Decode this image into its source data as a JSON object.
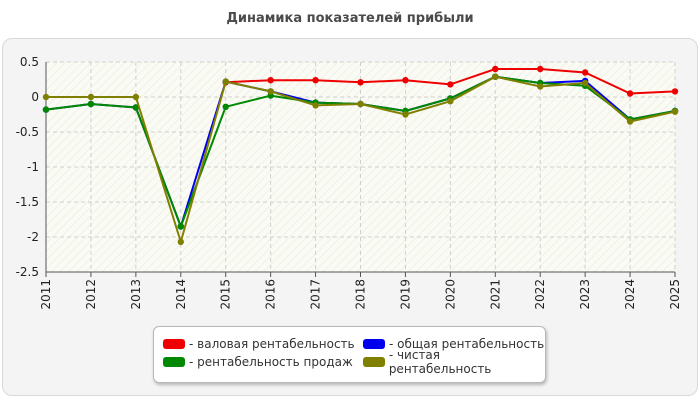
{
  "chart_data": {
    "type": "line",
    "title": "Динамика показателей прибыли",
    "x": [
      "2011",
      "2012",
      "2013",
      "2014",
      "2015",
      "2016",
      "2017",
      "2018",
      "2019",
      "2020",
      "2021",
      "2022",
      "2023",
      "2024",
      "2025"
    ],
    "yticks": [
      "0.5",
      "0",
      "-0.5",
      "-1",
      "-1.5",
      "-2",
      "-2.5"
    ],
    "ylim": [
      -2.5,
      0.5
    ],
    "grid": true,
    "legend_position": "bottom",
    "series": [
      {
        "name": "- валовая рентабельность",
        "color": "#ee0000",
        "values": [
          null,
          null,
          null,
          null,
          0.21,
          0.24,
          0.24,
          0.21,
          0.24,
          0.18,
          0.4,
          0.4,
          0.35,
          0.05,
          0.08
        ]
      },
      {
        "name": "- общая рентабельность",
        "color": "#0000ee",
        "values": [
          -0.18,
          -0.1,
          -0.15,
          -1.85,
          0.22,
          0.08,
          -0.08,
          -0.1,
          -0.2,
          -0.02,
          0.29,
          0.2,
          0.23,
          -0.32,
          -0.2
        ]
      },
      {
        "name": "- рентабельность продаж",
        "color": "#008800",
        "values": [
          -0.18,
          -0.1,
          -0.15,
          -1.85,
          -0.14,
          0.02,
          -0.08,
          -0.1,
          -0.2,
          -0.02,
          0.29,
          0.2,
          0.16,
          -0.32,
          -0.2
        ]
      },
      {
        "name": "- чистая рентабельность",
        "color": "#808000",
        "values": [
          0.0,
          0.0,
          0.0,
          -2.07,
          0.22,
          0.08,
          -0.12,
          -0.1,
          -0.25,
          -0.06,
          0.29,
          0.15,
          0.2,
          -0.35,
          -0.21
        ]
      }
    ]
  }
}
